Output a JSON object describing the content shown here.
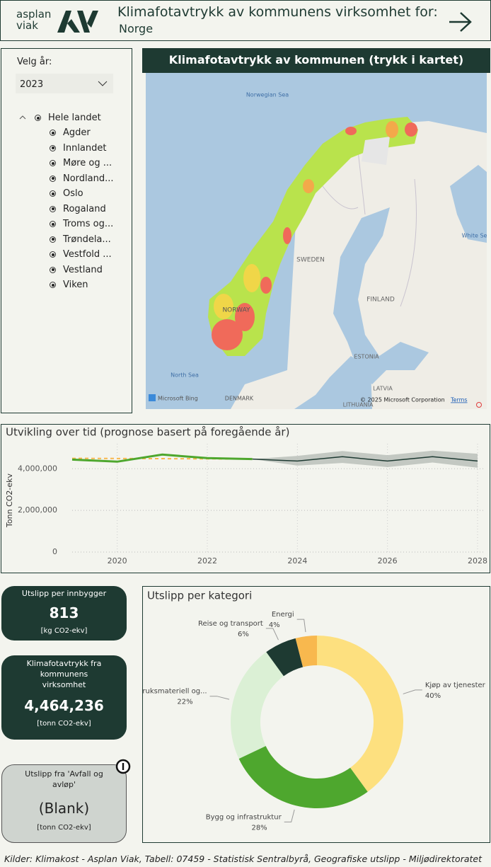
{
  "header": {
    "logo_top": "asplan",
    "logo_bottom": "viak",
    "title": "Klimafotavtrykk av kommunens virksomhet for:",
    "subtitle": "Norge"
  },
  "filter": {
    "label": "Velg år:",
    "selected_year": "2023",
    "tree_root": "Hele landet",
    "regions": [
      "Agder",
      "Innlandet",
      "Møre og ...",
      "Nordland...",
      "Oslo",
      "Rogaland",
      "Troms og...",
      "Trøndela...",
      "Vestfold ...",
      "Vestland",
      "Viken"
    ]
  },
  "map": {
    "title": "Klimafotavtrykk av kommunen (trykk i kartet)",
    "labels": [
      "Norwegian Sea",
      "SWEDEN",
      "FINLAND",
      "NORWAY",
      "North Sea",
      "ESTONIA",
      "LATVIA",
      "LITHUANIA",
      "DENMARK",
      "White Sea"
    ],
    "attribution": "© 2025 Microsoft Corporation",
    "terms": "Terms",
    "provider": "Microsoft Bing"
  },
  "chart_data": [
    {
      "type": "line",
      "title": "Utvikling over tid (prognose basert på foregående år)",
      "y_label": "Tonn CO2-ekv",
      "xlim": [
        2019,
        2028
      ],
      "xticks": [
        2020,
        2022,
        2024,
        2026,
        2028
      ],
      "ylim": [
        0,
        5200000
      ],
      "yticks": [
        0,
        {
          "value": 2000000,
          "label": "2,000,000"
        },
        {
          "value": 4000000,
          "label": "4,000,000"
        }
      ],
      "grid": true,
      "band": {
        "color": "#b3bab3",
        "x": [
          2023,
          2024,
          2025,
          2026,
          2027,
          2028
        ],
        "upper": [
          4464236,
          4620000,
          4850000,
          4650000,
          4870000,
          4720000
        ],
        "lower": [
          4464236,
          4150000,
          4280000,
          4080000,
          4300000,
          4050000
        ]
      },
      "series": [
        {
          "color": "#1e3a32",
          "dashed": false,
          "width": 1.5,
          "x": [
            2023,
            2024,
            2025,
            2026,
            2027,
            2028
          ],
          "values": [
            4464236,
            4370000,
            4580000,
            4370000,
            4580000,
            4370000
          ]
        },
        {
          "color": "#f8b84e",
          "dashed": true,
          "width": 2,
          "x": [
            2019,
            2023
          ],
          "values": [
            4500000,
            4470000
          ]
        },
        {
          "color": "#4ea72e",
          "dashed": false,
          "width": 3,
          "x": [
            2019,
            2020,
            2021,
            2022,
            2023
          ],
          "values": [
            4440000,
            4340000,
            4680000,
            4510000,
            4464236
          ]
        }
      ]
    },
    {
      "type": "donut",
      "title": "Utslipp per kategori",
      "categories": [
        "Kjøp av tjenester",
        "Bygg og infrastruktur",
        "Forbruksmateriell og...",
        "Reise og transport",
        "Energi"
      ],
      "values": [
        40,
        28,
        22,
        6,
        4
      ],
      "value_labels": [
        "40%",
        "28%",
        "22%",
        "6%",
        "4%"
      ],
      "colors": [
        "#fde07f",
        "#4ea72e",
        "#dbf0d5",
        "#1e3a32",
        "#f8b84e"
      ]
    }
  ],
  "kpis": [
    {
      "title": "Utslipp per innbygger",
      "value": "813",
      "unit": "[kg CO2-ekv]"
    },
    {
      "title": "Klimafotavtrykk fra kommunens virksomhet",
      "value": "4,464,236",
      "unit": "[tonn CO2-ekv]"
    },
    {
      "title": "Utslipp fra 'Avfall og avløp'",
      "value": "(Blank)",
      "unit": "[tonn CO2-ekv]"
    }
  ],
  "footer": "Kilder: Klimakost - Asplan Viak, Tabell: 07459 - Statistisk Sentralbyrå, Geografiske utslipp - Miljødirektoratet"
}
